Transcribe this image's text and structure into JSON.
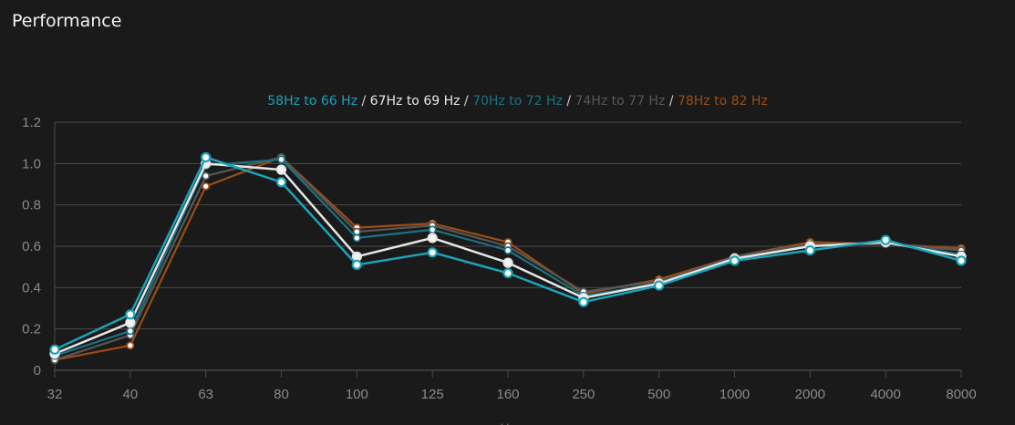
{
  "page": {
    "title": "Performance"
  },
  "chart_data": {
    "type": "line",
    "title": "",
    "xlabel": "Hz",
    "ylabel": "",
    "x_is_categorical": true,
    "categories": [
      "32",
      "40",
      "63",
      "80",
      "100",
      "125",
      "160",
      "250",
      "500",
      "1000",
      "2000",
      "4000",
      "8000"
    ],
    "y_ticks": [
      "0",
      "0.2",
      "0.4",
      "0.6",
      "0.8",
      "1.0",
      "1.2"
    ],
    "ylim": [
      0,
      1.2
    ],
    "grid": "horizontal",
    "legend_position": "top-center",
    "legend_separator": " / ",
    "series": [
      {
        "name": "58Hz to 66 Hz",
        "color": "#1ba3b9",
        "values": [
          0.1,
          0.27,
          1.03,
          0.91,
          0.51,
          0.57,
          0.47,
          0.33,
          0.41,
          0.53,
          0.58,
          0.63,
          0.53
        ]
      },
      {
        "name": "67Hz to 69 Hz",
        "color": "#e6e6e6",
        "values": [
          0.08,
          0.23,
          1.0,
          0.97,
          0.55,
          0.64,
          0.52,
          0.35,
          0.42,
          0.54,
          0.6,
          0.62,
          0.55
        ]
      },
      {
        "name": "70Hz to 72 Hz",
        "color": "#1a7282",
        "values": [
          0.07,
          0.19,
          0.99,
          1.02,
          0.64,
          0.68,
          0.58,
          0.36,
          0.42,
          0.54,
          0.6,
          0.62,
          0.56
        ]
      },
      {
        "name": "74Hz to 77 Hz",
        "color": "#575757",
        "values": [
          0.05,
          0.17,
          0.94,
          1.03,
          0.67,
          0.7,
          0.6,
          0.38,
          0.43,
          0.55,
          0.61,
          0.61,
          0.58
        ]
      },
      {
        "name": "78Hz to 82 Hz",
        "color": "#9a4d15",
        "values": [
          0.05,
          0.12,
          0.89,
          1.03,
          0.69,
          0.71,
          0.62,
          0.37,
          0.44,
          0.55,
          0.62,
          0.61,
          0.59
        ]
      }
    ]
  }
}
